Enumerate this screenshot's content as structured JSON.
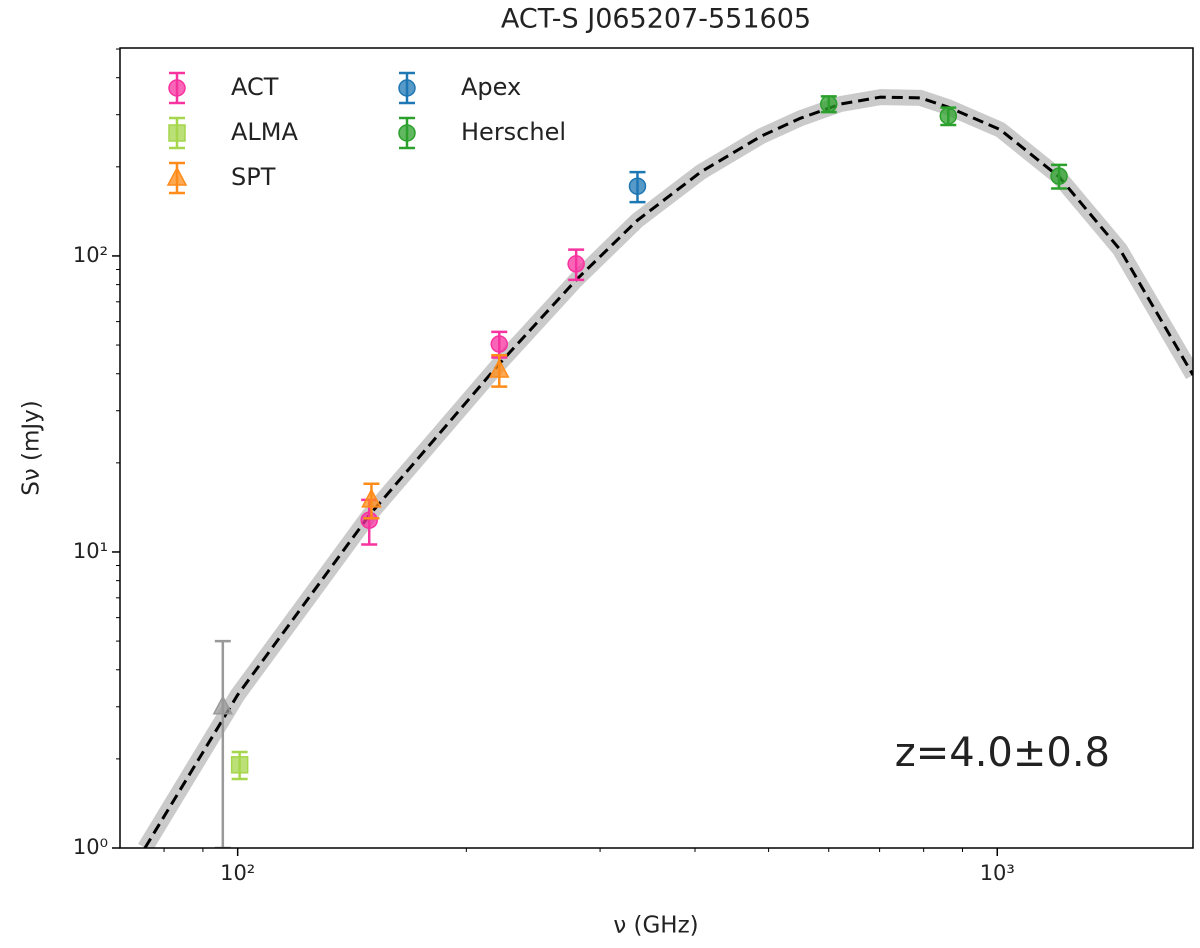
{
  "chart_data": {
    "type": "scatter",
    "title": "ACT-S J065207-551605",
    "xlabel": "ν (GHz)",
    "ylabel": "Sν (mJy)",
    "xscale": "log",
    "yscale": "log",
    "xlim": [
      70,
      1810
    ],
    "ylim": [
      1,
      504
    ],
    "xticks": [
      {
        "value": 100,
        "label": "10²"
      },
      {
        "value": 1000,
        "label": "10³"
      }
    ],
    "yticks": [
      {
        "value": 1,
        "label": "10⁰"
      },
      {
        "value": 10,
        "label": "10¹"
      },
      {
        "value": 100,
        "label": "10²"
      }
    ],
    "xminorticks": [
      80,
      90,
      200,
      300,
      400,
      500,
      600,
      700,
      800,
      900
    ],
    "yminorticks": [
      2,
      3,
      4,
      5,
      6,
      7,
      8,
      9,
      20,
      30,
      40,
      50,
      60,
      70,
      80,
      90,
      200,
      300,
      400,
      500
    ],
    "legend": "upper left",
    "series": [
      {
        "name": "ACT",
        "color": "#f7339f",
        "marker": "circle",
        "x": [
          149,
          221,
          279
        ],
        "values": [
          12.8,
          50.4,
          94
        ],
        "errors": [
          2.2,
          5,
          11
        ]
      },
      {
        "name": "ALMA",
        "color": "#a5d64b",
        "marker": "square",
        "x": [
          100.6
        ],
        "values": [
          1.91
        ],
        "errors": [
          0.2
        ]
      },
      {
        "name": "SPT",
        "color": "#ff8c1a",
        "marker": "triangle",
        "x": [
          150,
          221
        ],
        "values": [
          15,
          41.2
        ],
        "errors": [
          2,
          5
        ]
      },
      {
        "name": "Apex",
        "color": "#1f77b4",
        "marker": "circle",
        "x": [
          336
        ],
        "values": [
          172
        ],
        "errors": [
          20
        ]
      },
      {
        "name": "Herschel",
        "color": "#2ca02c",
        "marker": "circle",
        "x": [
          600,
          862,
          1206
        ],
        "values": [
          326,
          297,
          186
        ],
        "errors": [
          20,
          20,
          17
        ]
      },
      {
        "color": "#999999",
        "marker": "triangle",
        "x": [
          95.6
        ],
        "values": [
          3
        ],
        "errors": [
          2
        ]
      }
    ],
    "fit": {
      "color": "#000000",
      "band_color": "#bdbdbd",
      "x": [
        75.5,
        100,
        149,
        221,
        279,
        336,
        407,
        489,
        551,
        622,
        702,
        792,
        862,
        1009,
        1206,
        1451,
        1810
      ],
      "values": [
        1,
        3.29,
        13.3,
        43.2,
        83,
        132,
        192,
        254,
        292,
        326,
        344,
        342,
        318,
        267,
        185,
        105,
        39.6
      ]
    },
    "annotation": "z=4.0±0.8"
  }
}
